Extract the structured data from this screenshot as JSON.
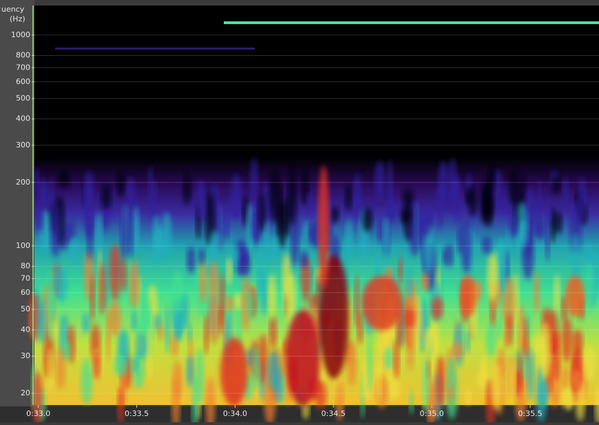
{
  "chart_data": {
    "type": "spectrogram",
    "ylabel": [
      "uency",
      "(Hz)"
    ],
    "ylog": true,
    "ylim": [
      17.6,
      1380
    ],
    "yticks": [
      20,
      30,
      40,
      50,
      60,
      70,
      80,
      100,
      200,
      300,
      400,
      500,
      600,
      700,
      800,
      1000
    ],
    "xlim": [
      32.98,
      35.85
    ],
    "xticks": [
      {
        "value": 33.0,
        "label": "0:33.0"
      },
      {
        "value": 33.5,
        "label": "0:33.5"
      },
      {
        "value": 34.0,
        "label": "0:34.0"
      },
      {
        "value": 34.5,
        "label": "0:34.5"
      },
      {
        "value": 35.0,
        "label": "0:35.0"
      },
      {
        "value": 35.5,
        "label": "0:35.5"
      }
    ],
    "grid": true
  }
}
